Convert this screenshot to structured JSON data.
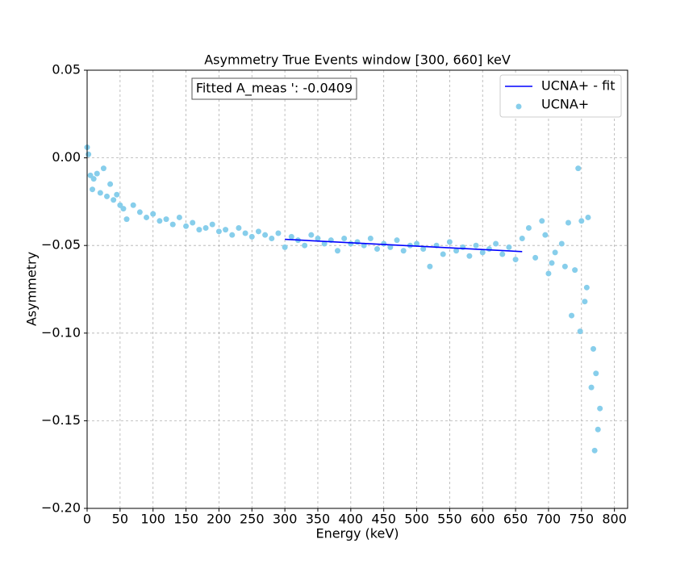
{
  "chart_data": {
    "type": "scatter",
    "title": "Asymmetry True Events window [300, 660] keV",
    "x_label": "Energy (keV)",
    "y_label": "Asymmetry",
    "annotation": "Fitted A_meas ': -0.0409",
    "xlim": [
      0,
      820
    ],
    "ylim": [
      -0.2,
      0.05
    ],
    "xticks": [
      0,
      50,
      100,
      150,
      200,
      250,
      300,
      350,
      400,
      450,
      500,
      550,
      600,
      650,
      700,
      750,
      800
    ],
    "yticks": [
      {
        "value": 0.05,
        "label": "0.05"
      },
      {
        "value": 0,
        "label": "0.00"
      },
      {
        "value": -0.05,
        "label": "−0.05"
      },
      {
        "value": -0.1,
        "label": "−0.10"
      },
      {
        "value": -0.15,
        "label": "−0.15"
      },
      {
        "value": -0.2,
        "label": "−0.20"
      }
    ],
    "grid": true,
    "legend": "upper right",
    "series": [
      {
        "name": "UCNA+ - fit",
        "type": "line",
        "color": "#0000ff",
        "x": [
          300,
          660
        ],
        "values": [
          -0.0465,
          -0.0535
        ]
      },
      {
        "name": "UCNA+",
        "type": "scatter",
        "color": "#87ceeb",
        "x": [
          0,
          2,
          5,
          8,
          10,
          15,
          20,
          25,
          30,
          35,
          40,
          45,
          50,
          55,
          60,
          70,
          80,
          90,
          100,
          110,
          120,
          130,
          140,
          150,
          160,
          170,
          180,
          190,
          200,
          210,
          220,
          230,
          240,
          250,
          260,
          270,
          280,
          290,
          300,
          310,
          320,
          330,
          340,
          350,
          360,
          370,
          380,
          390,
          400,
          410,
          420,
          430,
          440,
          450,
          460,
          470,
          480,
          490,
          500,
          510,
          520,
          530,
          540,
          550,
          560,
          570,
          580,
          590,
          600,
          610,
          620,
          630,
          640,
          650,
          660,
          670,
          680,
          690,
          695,
          700,
          705,
          710,
          720,
          725,
          730,
          735,
          740,
          745,
          748,
          750,
          755,
          758,
          760,
          765,
          768,
          770,
          772,
          775,
          778
        ],
        "values": [
          0.006,
          0.002,
          -0.01,
          -0.018,
          -0.012,
          -0.009,
          -0.02,
          -0.006,
          -0.022,
          -0.015,
          -0.024,
          -0.021,
          -0.027,
          -0.029,
          -0.035,
          -0.027,
          -0.031,
          -0.034,
          -0.032,
          -0.036,
          -0.035,
          -0.038,
          -0.034,
          -0.039,
          -0.037,
          -0.041,
          -0.04,
          -0.038,
          -0.042,
          -0.041,
          -0.044,
          -0.04,
          -0.043,
          -0.045,
          -0.042,
          -0.044,
          -0.046,
          -0.043,
          -0.051,
          -0.045,
          -0.047,
          -0.05,
          -0.044,
          -0.046,
          -0.049,
          -0.047,
          -0.053,
          -0.046,
          -0.049,
          -0.048,
          -0.05,
          -0.046,
          -0.052,
          -0.049,
          -0.051,
          -0.047,
          -0.053,
          -0.05,
          -0.049,
          -0.052,
          -0.062,
          -0.05,
          -0.055,
          -0.048,
          -0.053,
          -0.051,
          -0.056,
          -0.05,
          -0.054,
          -0.052,
          -0.049,
          -0.055,
          -0.051,
          -0.058,
          -0.046,
          -0.04,
          -0.057,
          -0.036,
          -0.044,
          -0.066,
          -0.06,
          -0.054,
          -0.049,
          -0.062,
          -0.037,
          -0.09,
          -0.064,
          -0.006,
          -0.099,
          -0.036,
          -0.082,
          -0.074,
          -0.034,
          -0.131,
          -0.109,
          -0.167,
          -0.123,
          -0.155,
          -0.143
        ]
      }
    ]
  }
}
